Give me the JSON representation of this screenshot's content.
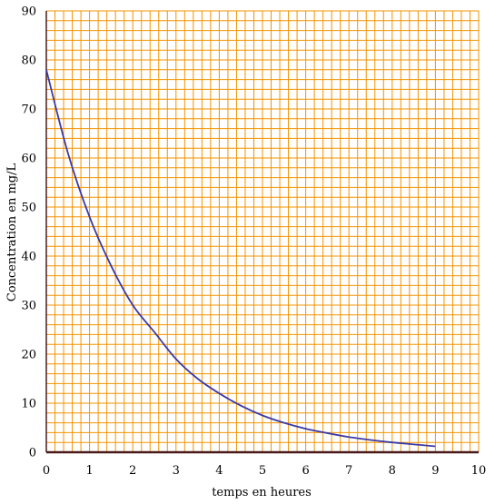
{
  "chart_data": {
    "type": "line",
    "xlabel": "temps en heures",
    "ylabel": "Concentration en mg/L",
    "xlim": [
      0,
      10
    ],
    "ylim": [
      0,
      90
    ],
    "x_ticks": [
      "0",
      "1",
      "2",
      "3",
      "4",
      "5",
      "6",
      "7",
      "8",
      "9",
      "10"
    ],
    "y_ticks": [
      "0",
      "10",
      "20",
      "30",
      "40",
      "50",
      "60",
      "70",
      "80",
      "90"
    ],
    "grid": true,
    "grid_minor_step_x": 0.2,
    "grid_minor_step_y": 2,
    "colors": {
      "grid": "#f29400",
      "curve": "#3a3aa8",
      "axis": "#4a1a1a"
    },
    "series": [
      {
        "x": [
          0,
          0.5,
          1,
          1.5,
          2,
          2.5,
          3,
          3.5,
          4,
          4.5,
          5,
          5.5,
          6,
          6.5,
          7,
          7.5,
          8,
          8.5,
          9
        ],
        "values": [
          78,
          61,
          48,
          38,
          30,
          24.5,
          19,
          15,
          12,
          9.5,
          7.5,
          6,
          4.8,
          3.9,
          3.1,
          2.5,
          2,
          1.6,
          1.2
        ]
      }
    ]
  }
}
